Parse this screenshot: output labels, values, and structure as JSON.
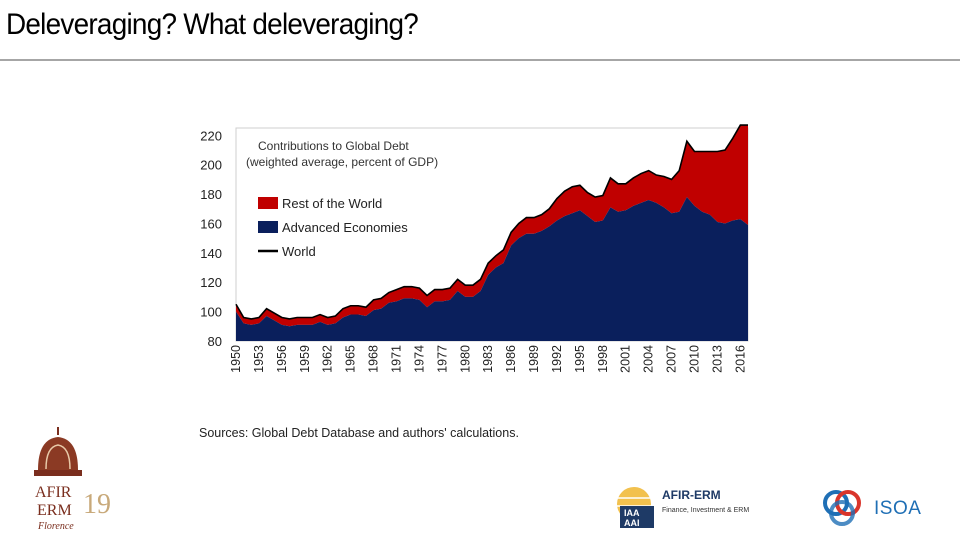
{
  "slide": {
    "title": "Deleveraging? What deleveraging?",
    "source": "Sources: Global Debt Database and authors' calculations."
  },
  "colors": {
    "rest_of_world": "#c00000",
    "advanced_economies": "#0a1f5c",
    "world": "#000000",
    "rule": "#a6a6a6"
  },
  "chart_data": {
    "type": "area",
    "title": "Contributions to Global Debt",
    "subtitle": "(weighted average, percent of GDP)",
    "ylim": [
      80,
      225
    ],
    "yticks": [
      80,
      100,
      120,
      140,
      160,
      180,
      200,
      220
    ],
    "xticks": [
      1950,
      1953,
      1956,
      1959,
      1962,
      1965,
      1968,
      1971,
      1974,
      1977,
      1980,
      1983,
      1986,
      1989,
      1992,
      1995,
      1998,
      2001,
      2004,
      2007,
      2010,
      2013,
      2016
    ],
    "grid": false,
    "legend_position": "top-left",
    "x": [
      1950,
      1951,
      1952,
      1953,
      1954,
      1955,
      1956,
      1957,
      1958,
      1959,
      1960,
      1961,
      1962,
      1963,
      1964,
      1965,
      1966,
      1967,
      1968,
      1969,
      1970,
      1971,
      1972,
      1973,
      1974,
      1975,
      1976,
      1977,
      1978,
      1979,
      1980,
      1981,
      1982,
      1983,
      1984,
      1985,
      1986,
      1987,
      1988,
      1989,
      1990,
      1991,
      1992,
      1993,
      1994,
      1995,
      1996,
      1997,
      1998,
      1999,
      2000,
      2001,
      2002,
      2003,
      2004,
      2005,
      2006,
      2007,
      2008,
      2009,
      2010,
      2011,
      2012,
      2013,
      2014,
      2015,
      2016,
      2017
    ],
    "series": [
      {
        "name": "Advanced Economies",
        "values": [
          100,
          92,
          91,
          92,
          97,
          94,
          91,
          90,
          91,
          91,
          91,
          93,
          91,
          92,
          96,
          98,
          98,
          97,
          101,
          102,
          106,
          107,
          109,
          109,
          108,
          103,
          107,
          107,
          108,
          114,
          110,
          110,
          114,
          125,
          130,
          133,
          145,
          150,
          153,
          153,
          155,
          158,
          162,
          165,
          167,
          169,
          165,
          161,
          162,
          171,
          168,
          169,
          172,
          174,
          176,
          174,
          171,
          167,
          168,
          178,
          172,
          168,
          166,
          161,
          160,
          162,
          163,
          159
        ]
      },
      {
        "name": "Rest of the World",
        "values": [
          5,
          4,
          4,
          4,
          5,
          5,
          5,
          5,
          5,
          5,
          5,
          5,
          5,
          5,
          6,
          6,
          6,
          6,
          7,
          7,
          7,
          8,
          8,
          8,
          8,
          8,
          8,
          8,
          8,
          8,
          8,
          8,
          8,
          8,
          8,
          9,
          9,
          10,
          11,
          11,
          11,
          12,
          15,
          17,
          18,
          17,
          16,
          17,
          17,
          20,
          19,
          18,
          19,
          20,
          20,
          19,
          21,
          23,
          28,
          38,
          37,
          41,
          43,
          48,
          50,
          56,
          64,
          68
        ]
      },
      {
        "name": "World",
        "values": [
          105,
          96,
          95,
          96,
          102,
          99,
          96,
          95,
          96,
          96,
          96,
          98,
          96,
          97,
          102,
          104,
          104,
          103,
          108,
          109,
          113,
          115,
          117,
          117,
          116,
          111,
          115,
          115,
          116,
          122,
          118,
          118,
          122,
          133,
          138,
          142,
          154,
          160,
          164,
          164,
          166,
          170,
          177,
          182,
          185,
          186,
          181,
          178,
          179,
          191,
          187,
          187,
          191,
          194,
          196,
          193,
          192,
          190,
          196,
          216,
          209,
          209,
          209,
          209,
          210,
          218,
          227,
          227
        ]
      }
    ],
    "legend": [
      "Rest of the World",
      "Advanced Economies",
      "World"
    ]
  },
  "logos": {
    "florence": {
      "line1": "AFIR",
      "line2": "ERM",
      "year": "19",
      "script": "Florence"
    },
    "afir": {
      "badge_top": "IAA",
      "badge_bottom": "AAI",
      "title": "AFIR-ERM",
      "subtitle": "Finance, Investment & ERM"
    },
    "isoa": {
      "text": "ISOA"
    }
  }
}
